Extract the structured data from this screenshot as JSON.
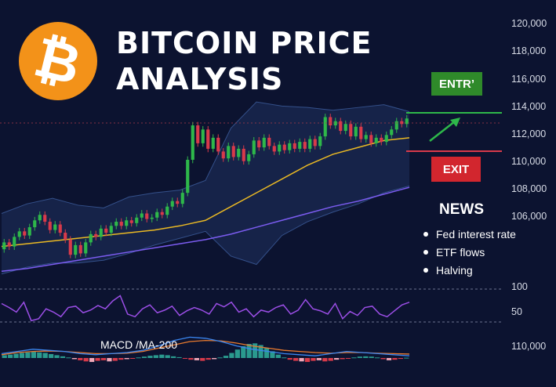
{
  "header": {
    "logo_glyph": "₿",
    "title_line1": "BITCOIN PRICE",
    "title_line2": "ANALYSIS"
  },
  "signals": {
    "entry_label": "ENTR’",
    "exit_label": "EXIT"
  },
  "news": {
    "title": "NEWS",
    "items": [
      "Fed interest rate",
      "ETF flows",
      "Halving"
    ]
  },
  "indicators": {
    "macd_label": "MACD /MA-200"
  },
  "colors": {
    "background": "#0c1330",
    "bitcoin_orange": "#f39219",
    "up_candle": "#2eb84a",
    "down_candle": "#d83a4a",
    "entry_green": "#2f8a2a",
    "exit_red": "#d2262e",
    "ma_short": "#e9b824",
    "ma_long": "#7b5cf0",
    "rsi": "#9b4ee6"
  },
  "chart_data": {
    "type": "line",
    "price_axis": {
      "ticks": [
        "120,000",
        "118,000",
        "116,000",
        "114,000",
        "112,000",
        "110,000",
        "108,000",
        "106,000"
      ],
      "ylim": [
        104000,
        121500
      ]
    },
    "rsi_axis": {
      "ticks": [
        "100",
        "50"
      ]
    },
    "macd_axis": {
      "ticks": [
        "110,000"
      ]
    },
    "candles": [
      {
        "o": 103600,
        "c": 104100
      },
      {
        "o": 104100,
        "c": 103800
      },
      {
        "o": 103800,
        "c": 104500
      },
      {
        "o": 104500,
        "c": 104900
      },
      {
        "o": 104900,
        "c": 104600
      },
      {
        "o": 104600,
        "c": 105200
      },
      {
        "o": 105200,
        "c": 105700
      },
      {
        "o": 105700,
        "c": 106100
      },
      {
        "o": 106100,
        "c": 105600
      },
      {
        "o": 105600,
        "c": 105000
      },
      {
        "o": 105000,
        "c": 105400
      },
      {
        "o": 105400,
        "c": 104800
      },
      {
        "o": 104800,
        "c": 104300
      },
      {
        "o": 104300,
        "c": 103200
      },
      {
        "o": 103200,
        "c": 103900
      },
      {
        "o": 103900,
        "c": 103300
      },
      {
        "o": 103300,
        "c": 104100
      },
      {
        "o": 104100,
        "c": 104700
      },
      {
        "o": 104700,
        "c": 104500
      },
      {
        "o": 104500,
        "c": 105100
      },
      {
        "o": 105100,
        "c": 104800
      },
      {
        "o": 104800,
        "c": 105300
      },
      {
        "o": 105300,
        "c": 105600
      },
      {
        "o": 105600,
        "c": 105300
      },
      {
        "o": 105300,
        "c": 105700
      },
      {
        "o": 105700,
        "c": 105500
      },
      {
        "o": 105500,
        "c": 105900
      },
      {
        "o": 105900,
        "c": 106200
      },
      {
        "o": 106200,
        "c": 105800
      },
      {
        "o": 105800,
        "c": 105900
      },
      {
        "o": 105900,
        "c": 106300
      },
      {
        "o": 106300,
        "c": 106100
      },
      {
        "o": 106100,
        "c": 106700
      },
      {
        "o": 106700,
        "c": 107100
      },
      {
        "o": 107100,
        "c": 106900
      },
      {
        "o": 106900,
        "c": 107700
      },
      {
        "o": 107700,
        "c": 110100
      },
      {
        "o": 110100,
        "c": 112600
      },
      {
        "o": 112600,
        "c": 111300
      },
      {
        "o": 111300,
        "c": 112300
      },
      {
        "o": 112300,
        "c": 110900
      },
      {
        "o": 110900,
        "c": 111700
      },
      {
        "o": 111700,
        "c": 110700
      },
      {
        "o": 110700,
        "c": 110200
      },
      {
        "o": 110200,
        "c": 111100
      },
      {
        "o": 111100,
        "c": 110300
      },
      {
        "o": 110300,
        "c": 110900
      },
      {
        "o": 110900,
        "c": 110000
      },
      {
        "o": 110000,
        "c": 110500
      },
      {
        "o": 110500,
        "c": 111500
      },
      {
        "o": 111500,
        "c": 111000
      },
      {
        "o": 111000,
        "c": 111700
      },
      {
        "o": 111700,
        "c": 111100
      },
      {
        "o": 111100,
        "c": 110700
      },
      {
        "o": 110700,
        "c": 111200
      },
      {
        "o": 111200,
        "c": 110800
      },
      {
        "o": 110800,
        "c": 111300
      },
      {
        "o": 111300,
        "c": 110900
      },
      {
        "o": 110900,
        "c": 111400
      },
      {
        "o": 111400,
        "c": 110900
      },
      {
        "o": 110900,
        "c": 111600
      },
      {
        "o": 111600,
        "c": 111100
      },
      {
        "o": 111100,
        "c": 111800
      },
      {
        "o": 111800,
        "c": 113200
      },
      {
        "o": 113200,
        "c": 112600
      },
      {
        "o": 112600,
        "c": 112900
      },
      {
        "o": 112900,
        "c": 112200
      },
      {
        "o": 112200,
        "c": 112700
      },
      {
        "o": 112700,
        "c": 111800
      },
      {
        "o": 111800,
        "c": 112500
      },
      {
        "o": 112500,
        "c": 111600
      },
      {
        "o": 111600,
        "c": 111900
      },
      {
        "o": 111900,
        "c": 111300
      },
      {
        "o": 111300,
        "c": 111700
      },
      {
        "o": 111700,
        "c": 111400
      },
      {
        "o": 111400,
        "c": 111900
      },
      {
        "o": 111900,
        "c": 112300
      },
      {
        "o": 112300,
        "c": 112900
      },
      {
        "o": 112900,
        "c": 112700
      },
      {
        "o": 112700,
        "c": 113100
      }
    ],
    "bands_upper": [
      106200,
      106900,
      107300,
      106800,
      106600,
      107400,
      107700,
      107900,
      108600,
      112400,
      114300,
      114000,
      113900,
      113700,
      113900,
      114100,
      113600
    ],
    "bands_lower": [
      101800,
      102300,
      102600,
      102600,
      102800,
      103300,
      103900,
      104400,
      104900,
      103100,
      102500,
      104600,
      105600,
      106300,
      106900,
      107700,
      108200
    ],
    "ma_short": [
      103800,
      104000,
      104200,
      104400,
      104600,
      104800,
      105000,
      105300,
      105700,
      106700,
      107700,
      108700,
      109700,
      110500,
      111000,
      111500,
      111700
    ],
    "ma_long": [
      102000,
      102200,
      102500,
      102800,
      103100,
      103400,
      103700,
      104000,
      104300,
      104700,
      105200,
      105700,
      106200,
      106700,
      107100,
      107600,
      108100
    ],
    "rsi": [
      68,
      62,
      55,
      70,
      42,
      45,
      60,
      55,
      48,
      62,
      64,
      54,
      58,
      65,
      60,
      72,
      80,
      52,
      48,
      60,
      66,
      54,
      58,
      64,
      50,
      57,
      62,
      58,
      52,
      68,
      63,
      70,
      55,
      60,
      48,
      58,
      55,
      62,
      66,
      52,
      58,
      74,
      60,
      57,
      52,
      68,
      45,
      56,
      50,
      62,
      64,
      52,
      48,
      57,
      66,
      70
    ],
    "macd_line": [
      0.2,
      0.3,
      0.4,
      0.35,
      0.3,
      0.2,
      0.15,
      0.2,
      0.25,
      0.35,
      0.55,
      0.8,
      0.95,
      0.9,
      0.75,
      0.55,
      0.4,
      0.3,
      0.2,
      0.15,
      0.1,
      0.2,
      0.3,
      0.25,
      0.2,
      0.15,
      0.1
    ],
    "signal_line": [
      0.15,
      0.25,
      0.3,
      0.32,
      0.3,
      0.25,
      0.2,
      0.2,
      0.22,
      0.3,
      0.45,
      0.6,
      0.75,
      0.8,
      0.78,
      0.68,
      0.55,
      0.45,
      0.35,
      0.3,
      0.25,
      0.22,
      0.25,
      0.25,
      0.22,
      0.2,
      0.18
    ],
    "macd_histogram": [
      0.1,
      0.12,
      0.15,
      0.18,
      0.2,
      0.22,
      0.2,
      0.18,
      0.14,
      0.1,
      0.06,
      0.02,
      -0.04,
      -0.08,
      -0.12,
      -0.14,
      -0.1,
      -0.08,
      -0.12,
      -0.1,
      -0.06,
      -0.04,
      -0.02,
      0.02,
      0.05,
      0.08,
      0.1,
      0.12,
      0.1,
      0.06,
      0.03,
      -0.02,
      -0.06,
      -0.08,
      -0.1,
      -0.06,
      -0.04,
      0.02,
      0.08,
      0.18,
      0.3,
      0.42,
      0.5,
      0.52,
      0.46,
      0.36,
      0.24,
      0.12,
      0.02,
      -0.06,
      -0.1,
      -0.12,
      -0.14,
      -0.1,
      -0.08,
      -0.12,
      -0.1,
      -0.06,
      -0.04,
      -0.02,
      0.02,
      0.05,
      0.06,
      0.05,
      0.02,
      -0.04,
      -0.08,
      -0.06,
      -0.03,
      0.01
    ]
  }
}
